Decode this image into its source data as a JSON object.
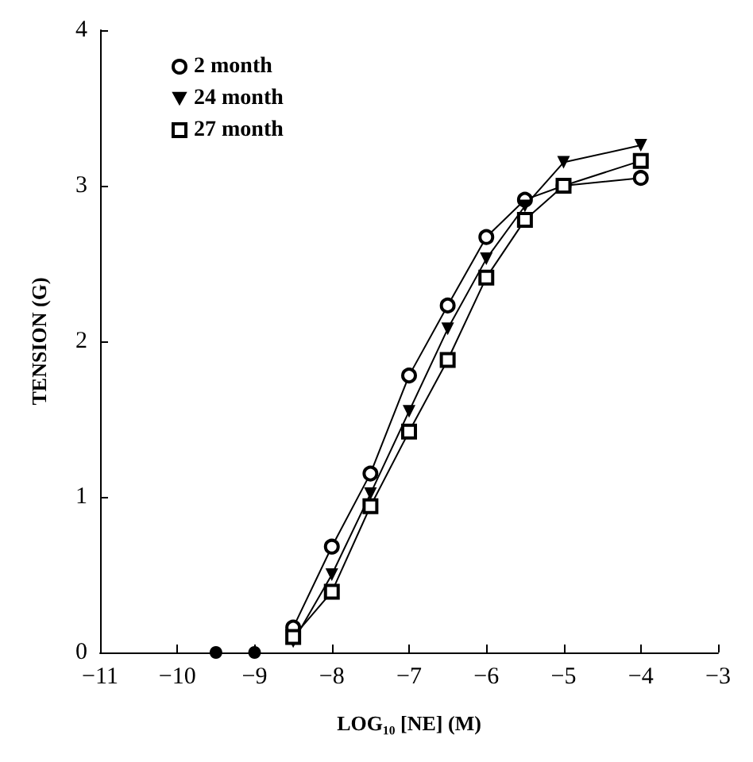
{
  "chart_data": {
    "type": "line",
    "xlabel": "LOG₁₀ [NE] (M)",
    "ylabel": "TENSION (G)",
    "xlim": [
      -11,
      -3
    ],
    "xticks": [
      -11,
      -10,
      -9,
      -8,
      -7,
      -6,
      -5,
      -4,
      -3
    ],
    "ylim": [
      0,
      4
    ],
    "yticks": [
      0,
      1,
      2,
      3,
      4
    ],
    "grid": false,
    "legend": "top left",
    "series": [
      {
        "name": "2 month",
        "color": "#000000",
        "marker": "circle",
        "x": [
          -8.5,
          -8,
          -7.5,
          -7,
          -6.5,
          -6,
          -5.5,
          -5,
          -4
        ],
        "values": [
          0.16,
          0.68,
          1.15,
          1.78,
          2.23,
          2.67,
          2.91,
          3.0,
          3.05
        ]
      },
      {
        "name": "24 month",
        "color": "#000000",
        "marker": "triangle",
        "x": [
          -8.5,
          -8,
          -7.5,
          -7,
          -6.5,
          -6,
          -5.5,
          -5,
          -4
        ],
        "values": [
          0.07,
          0.5,
          1.02,
          1.55,
          2.08,
          2.53,
          2.87,
          3.15,
          3.26
        ]
      },
      {
        "name": "27 month",
        "color": "#000000",
        "marker": "square",
        "x": [
          -8.5,
          -8,
          -7.5,
          -7,
          -6.5,
          -6,
          -5.5,
          -5,
          -4
        ],
        "values": [
          0.1,
          0.39,
          0.94,
          1.42,
          1.88,
          2.41,
          2.78,
          3.0,
          3.16
        ]
      },
      {
        "type": "scatter",
        "color": "#000000",
        "marker": "circle",
        "x": [
          -9.5,
          -9
        ],
        "values": [
          0,
          0
        ]
      }
    ]
  }
}
